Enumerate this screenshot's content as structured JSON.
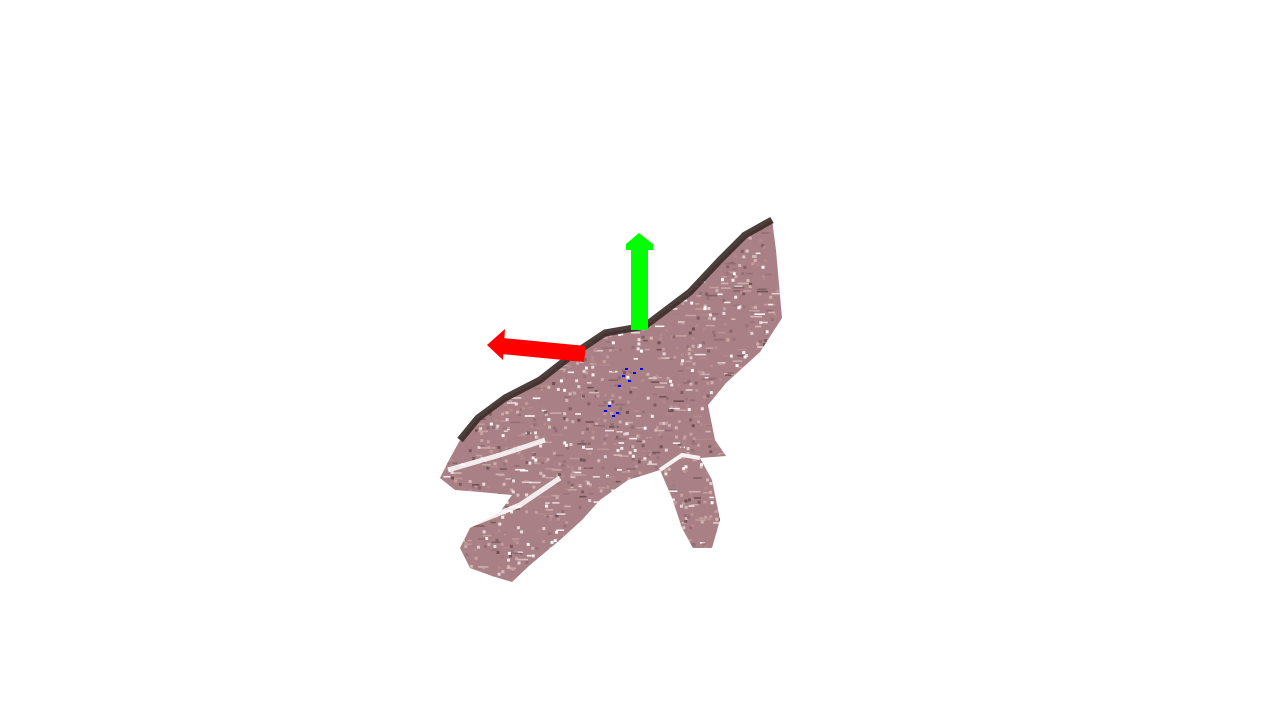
{
  "viewer": {
    "background_color": "#ffffff"
  },
  "point_cloud": {
    "subject": "hand",
    "skin_colors": [
      "#b98c8c",
      "#a97d82",
      "#8f6b73",
      "#c9a3a0",
      "#6b4e4f",
      "#d8bdb8"
    ],
    "shadow_color": "#3a2a28",
    "specular_color": "#ffffff"
  },
  "axes": {
    "x_axis_color": "#ff0000",
    "y_axis_color": "#00ff00",
    "z_axis_color": "#0000ff"
  }
}
